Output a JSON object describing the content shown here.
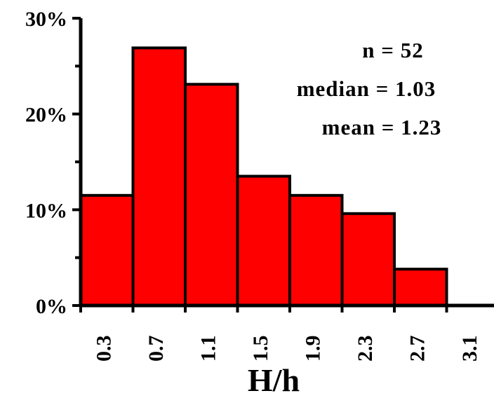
{
  "chart_data": {
    "type": "bar",
    "categories": [
      "0.3",
      "0.7",
      "1.1",
      "1.5",
      "1.9",
      "2.3",
      "2.7",
      "3.1"
    ],
    "values": [
      11.5,
      26.9,
      23.1,
      13.5,
      11.5,
      9.6,
      3.8,
      0
    ],
    "xlabel": "H/h",
    "ylabel": "",
    "ylim": [
      0,
      30
    ],
    "yticks": [
      "0%",
      "10%",
      "20%",
      "30%"
    ],
    "annotations": [
      "n = 52",
      "median = 1.03",
      "mean = 1.23"
    ],
    "bar_color": "#ff0000",
    "edge_color": "#000000",
    "grid": false
  }
}
